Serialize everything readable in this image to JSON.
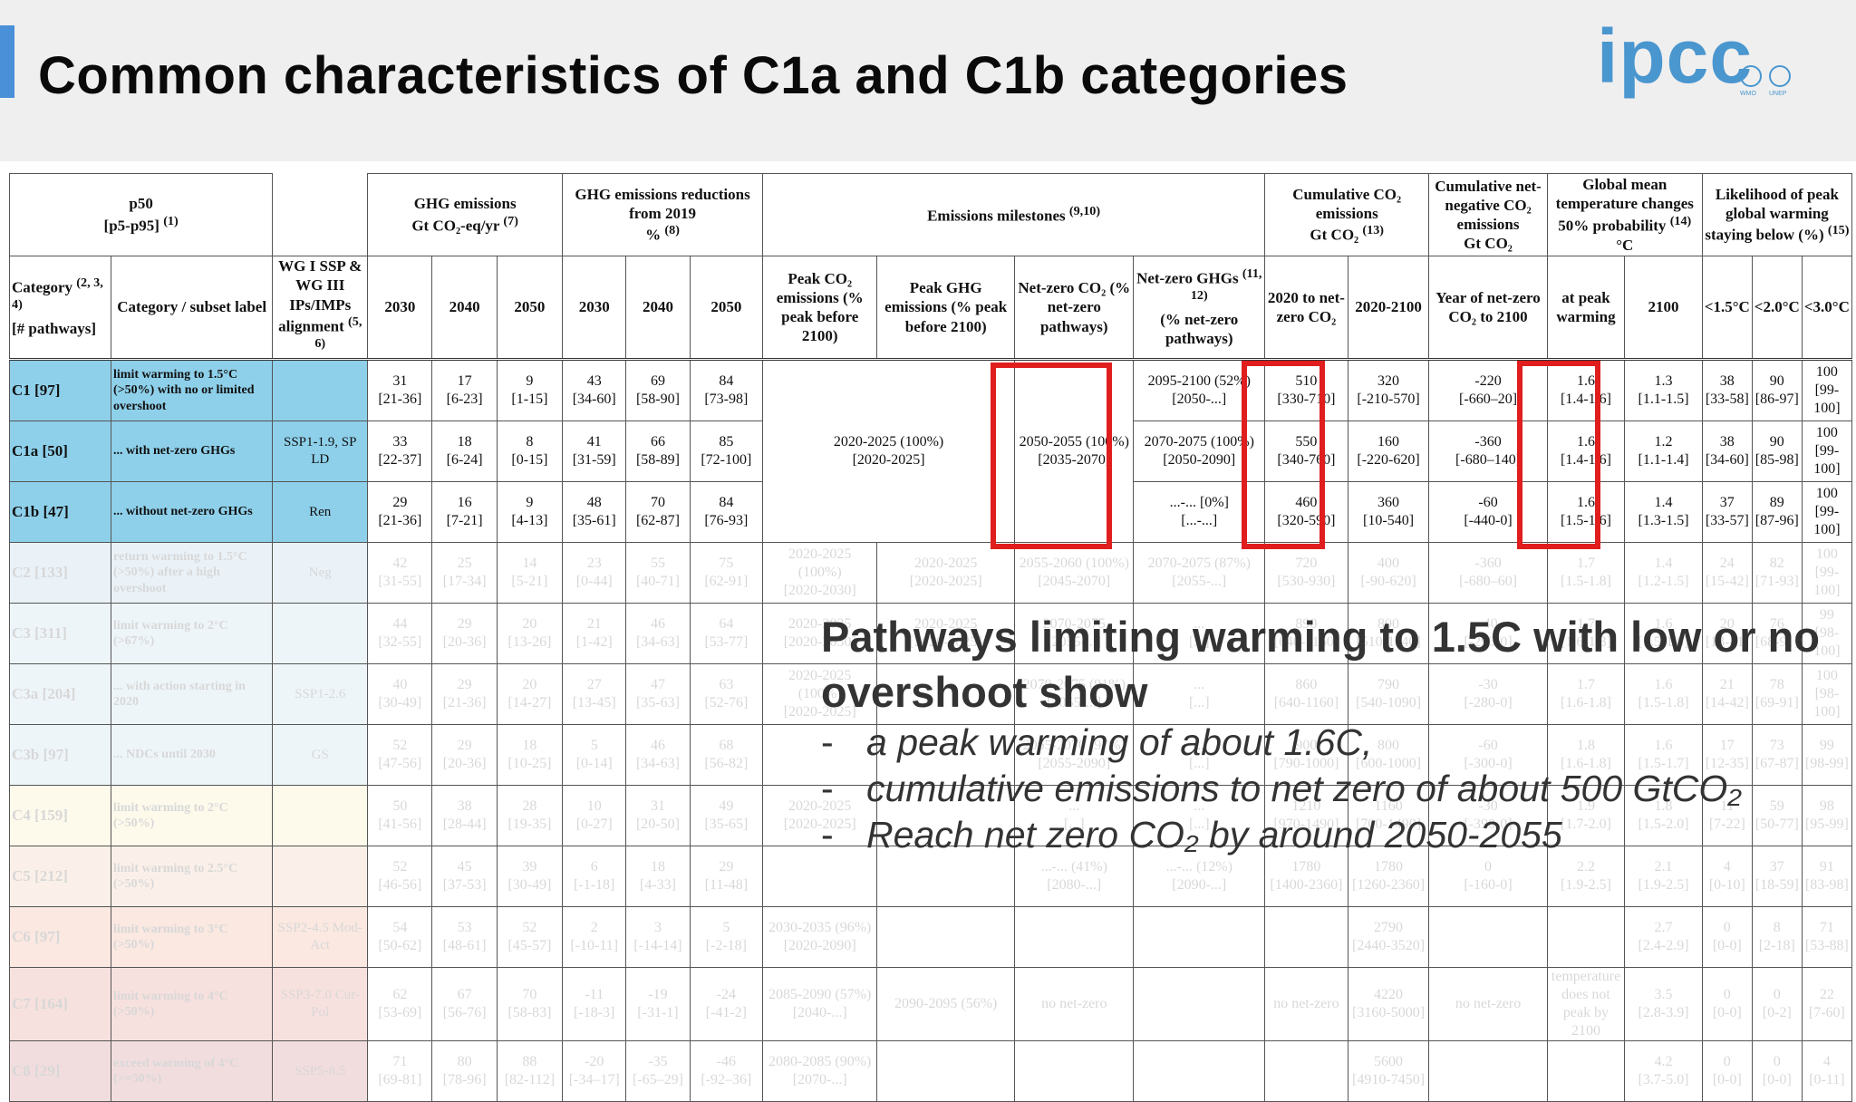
{
  "slide": {
    "title": "Common characteristics of C1a and C1b categories",
    "logo_text": "ipcc",
    "logo_sub": [
      "WMO",
      "UNEP"
    ],
    "accent_color": "#4a90d9",
    "highlight_color": "#e01e1e"
  },
  "headers": {
    "p50": "p50",
    "p5p95": "[p5-p95]",
    "p50_note": "(1)",
    "ghg_emissions": "GHG emissions",
    "ghg_emissions_unit": "Gt CO₂-eq/yr",
    "ghg_emissions_note": "(7)",
    "ghg_reductions": "GHG emissions reductions",
    "ghg_reductions_from": "from 2019",
    "ghg_reductions_unit": "%",
    "ghg_reductions_note": "(8)",
    "milestones": "Emissions milestones",
    "milestones_note": "(9,10)",
    "cum_co2": "Cumulative CO₂ emissions",
    "cum_co2_unit": "Gt CO₂",
    "cum_co2_note": "(13)",
    "cum_netneg": "Cumulative net-negative CO₂ emissions",
    "cum_netneg_unit": "Gt CO₂",
    "gmt": "Global mean temperature changes",
    "gmt_prob": "50% probability",
    "gmt_note": "(14)",
    "gmt_unit": "°C",
    "likelihood": "Likelihood of peak global warming staying below (%)",
    "likelihood_note": "(15)",
    "category": "Category",
    "category_note": "(2, 3, 4)",
    "n_pathways": "[# pathways]",
    "subset_label": "Category / subset label",
    "wg_alignment": "WG I SSP & WG III IPs/IMPs alignment",
    "wg_alignment_note": "(5, 6)",
    "y2030": "2030",
    "y2040": "2040",
    "y2050": "2050",
    "peak_co2": "Peak CO₂ emissions (% peak before 2100)",
    "peak_ghg": "Peak GHG emissions (% peak before 2100)",
    "netzero_co2": "Net-zero CO₂ (% net-zero pathways)",
    "netzero_ghg": "Net-zero GHGs",
    "netzero_ghg_note": "(11, 12)",
    "netzero_ghg_sub": "(% net-zero pathways)",
    "to_netzero": "2020 to net-zero CO₂",
    "range_2020_2100": "2020-2100",
    "year_netzero": "Year of net-zero CO₂ to 2100",
    "at_peak": "at peak warming",
    "y2100": "2100",
    "lt15": "<1.5°C",
    "lt20": "<2.0°C",
    "lt30": "<3.0°C"
  },
  "rows": [
    {
      "cat": "C1 [97]",
      "label": "limit warming to 1.5°C (>50%) with no or limited overshoot",
      "ssp": "",
      "g2030": "31",
      "g2030r": "[21-36]",
      "g2040": "17",
      "g2040r": "[6-23]",
      "g2050": "9",
      "g2050r": "[1-15]",
      "r2030": "43",
      "r2030r": "[34-60]",
      "r2040": "69",
      "r2040r": "[58-90]",
      "r2050": "84",
      "r2050r": "[73-98]",
      "nzghg": "2095-2100 (52%)",
      "nzghgr": "[2050-...]",
      "cum": "510",
      "cumr": "[330-710]",
      "c2100": "320",
      "c2100r": "[-210-570]",
      "neg": "-220",
      "negr": "[-660–20]",
      "peak": "1.6",
      "peakr": "[1.4-1.6]",
      "t2100": "1.3",
      "t2100r": "[1.1-1.5]",
      "l15": "38",
      "l15r": "[33-58]",
      "l20": "90",
      "l20r": "[86-97]",
      "l30": "100",
      "l30r": "[99-100]"
    },
    {
      "cat": "C1a [50]",
      "label": "... with net-zero GHGs",
      "ssp": "SSP1-1.9, SP LD",
      "g2030": "33",
      "g2030r": "[22-37]",
      "g2040": "18",
      "g2040r": "[6-24]",
      "g2050": "8",
      "g2050r": "[0-15]",
      "r2030": "41",
      "r2030r": "[31-59]",
      "r2040": "66",
      "r2040r": "[58-89]",
      "r2050": "85",
      "r2050r": "[72-100]",
      "peakco2": "2020-2025 (100%)",
      "peakco2r": "[2020-2025]",
      "nzco2": "2050-2055 (100%)",
      "nzco2r": "[2035-2070]",
      "nzghg": "2070-2075 (100%)",
      "nzghgr": "[2050-2090]",
      "cum": "550",
      "cumr": "[340-760]",
      "c2100": "160",
      "c2100r": "[-220-620]",
      "neg": "-360",
      "negr": "[-680–140]",
      "peak": "1.6",
      "peakr": "[1.4-1.6]",
      "t2100": "1.2",
      "t2100r": "[1.1-1.4]",
      "l15": "38",
      "l15r": "[34-60]",
      "l20": "90",
      "l20r": "[85-98]",
      "l30": "100",
      "l30r": "[99-100]"
    },
    {
      "cat": "C1b [47]",
      "label": "... without net-zero GHGs",
      "ssp": "Ren",
      "g2030": "29",
      "g2030r": "[21-36]",
      "g2040": "16",
      "g2040r": "[7-21]",
      "g2050": "9",
      "g2050r": "[4-13]",
      "r2030": "48",
      "r2030r": "[35-61]",
      "r2040": "70",
      "r2040r": "[62-87]",
      "r2050": "84",
      "r2050r": "[76-93]",
      "nzghg": "...-... [0%]",
      "nzghgr": "[...-...]",
      "cum": "460",
      "cumr": "[320-590]",
      "c2100": "360",
      "c2100r": "[10-540]",
      "neg": "-60",
      "negr": "[-440-0]",
      "peak": "1.6",
      "peakr": "[1.5-1.6]",
      "t2100": "1.4",
      "t2100r": "[1.3-1.5]",
      "l15": "37",
      "l15r": "[33-57]",
      "l20": "89",
      "l20r": "[87-96]",
      "l30": "100",
      "l30r": "[99-100]"
    }
  ],
  "faded_rows": [
    {
      "cat": "C2 [133]",
      "label": "return warming to 1.5°C (>50%) after a high overshoot",
      "ssp": "Neg",
      "g2030": "42",
      "g2030r": "[31-55]",
      "g2040": "25",
      "g2040r": "[17-34]",
      "g2050": "14",
      "g2050r": "[5-21]",
      "r2030": "23",
      "r2030r": "[0-44]",
      "r2040": "55",
      "r2040r": "[40-71]",
      "r2050": "75",
      "r2050r": "[62-91]",
      "pk1": "2020-2025 (100%)",
      "pk1r": "[2020-2030]",
      "pk2": "2020-2025",
      "pk2r": "[2020-2025]",
      "nz1": "2055-2060 (100%)",
      "nz1r": "[2045-2070]",
      "nz2": "2070-2075 (87%)",
      "nz2r": "[2055-...]",
      "cum": "720",
      "cumr": "[530-930]",
      "c2100": "400",
      "c2100r": "[-90-620]",
      "neg": "-360",
      "negr": "[-680–60]",
      "peak": "1.7",
      "peakr": "[1.5-1.8]",
      "t2100": "1.4",
      "t2100r": "[1.2-1.5]",
      "l15": "24",
      "l15r": "[15-42]",
      "l20": "82",
      "l20r": "[71-93]",
      "l30": "100",
      "l30r": "[99-100]",
      "cls": "bg-c2"
    },
    {
      "cat": "C3 [311]",
      "label": "limit warming to 2°C (>67%)",
      "ssp": "",
      "g2030": "44",
      "g2030r": "[32-55]",
      "g2040": "29",
      "g2040r": "[20-36]",
      "g2050": "20",
      "g2050r": "[13-26]",
      "r2030": "21",
      "r2030r": "[1-42]",
      "r2040": "46",
      "r2040r": "[34-63]",
      "r2050": "64",
      "r2050r": "[53-77]",
      "pk1": "2020-2025",
      "pk1r": "[2020-2030]",
      "pk2": "2020-2025",
      "pk2r": "[2020-2025]",
      "nz1": "2070-2075",
      "nz1r": "[2055-...]",
      "nz2": "...",
      "nz2r": "[...]",
      "cum": "890",
      "cumr": "[640-1160]",
      "c2100": "800",
      "c2100r": "[510-1140]",
      "neg": "-40",
      "negr": "[-290-0]",
      "peak": "1.7",
      "peakr": "[1.6-1.8]",
      "t2100": "1.6",
      "t2100r": "[1.5-1.8]",
      "l15": "20",
      "l15r": "[13-41]",
      "l20": "76",
      "l20r": "[68-91]",
      "l30": "99",
      "l30r": "[98-100]",
      "cls": "bg-c3"
    },
    {
      "cat": "C3a [204]",
      "label": "... with action starting in 2020",
      "ssp": "SSP1-2.6",
      "g2030": "40",
      "g2030r": "[30-49]",
      "g2040": "29",
      "g2040r": "[21-36]",
      "g2050": "20",
      "g2050r": "[14-27]",
      "r2030": "27",
      "r2030r": "[13-45]",
      "r2040": "47",
      "r2040r": "[35-63]",
      "r2050": "63",
      "r2050r": "[52-76]",
      "pk1": "2020-2025 (100%)",
      "pk1r": "[2020-2025]",
      "pk2": "",
      "pk2r": "",
      "nz1": "2070-2075 (91%)",
      "nz1r": "[2055-...]",
      "nz2": "...",
      "nz2r": "[...]",
      "cum": "860",
      "cumr": "[640-1160]",
      "c2100": "790",
      "c2100r": "[540-1090]",
      "neg": "-30",
      "negr": "[-280-0]",
      "peak": "1.7",
      "peakr": "[1.6-1.8]",
      "t2100": "1.6",
      "t2100r": "[1.5-1.8]",
      "l15": "21",
      "l15r": "[14-42]",
      "l20": "78",
      "l20r": "[69-91]",
      "l30": "100",
      "l30r": "[98-100]",
      "cls": "bg-c3"
    },
    {
      "cat": "C3b [97]",
      "label": "... NDCs until 2030",
      "ssp": "GS",
      "g2030": "52",
      "g2030r": "[47-56]",
      "g2040": "29",
      "g2040r": "[20-36]",
      "g2050": "18",
      "g2050r": "[10-25]",
      "r2030": "5",
      "r2030r": "[0-14]",
      "r2040": "46",
      "r2040r": "[34-63]",
      "r2050": "68",
      "r2050r": "[56-82]",
      "pk1": "",
      "pk1r": "",
      "pk2": "",
      "pk2r": "",
      "nz1": "2065-2070 (97%)",
      "nz1r": "[2055-2090]",
      "nz2": "...",
      "nz2r": "[...]",
      "cum": "900",
      "cumr": "[790-1000]",
      "c2100": "800",
      "c2100r": "[600-1000]",
      "neg": "-60",
      "negr": "[-300-0]",
      "peak": "1.8",
      "peakr": "[1.6-1.8]",
      "t2100": "1.6",
      "t2100r": "[1.5-1.7]",
      "l15": "17",
      "l15r": "[12-35]",
      "l20": "73",
      "l20r": "[67-87]",
      "l30": "99",
      "l30r": "[98-99]",
      "cls": "bg-c3"
    },
    {
      "cat": "C4 [159]",
      "label": "limit warming to 2°C (>50%)",
      "ssp": "",
      "g2030": "50",
      "g2030r": "[41-56]",
      "g2040": "38",
      "g2040r": "[28-44]",
      "g2050": "28",
      "g2050r": "[19-35]",
      "r2030": "10",
      "r2030r": "[0-27]",
      "r2040": "31",
      "r2040r": "[20-50]",
      "r2050": "49",
      "r2050r": "[35-65]",
      "pk1": "2020-2025",
      "pk1r": "[2020-2025]",
      "pk2": "",
      "pk2r": "",
      "nz1": "...",
      "nz1r": "[...]",
      "nz2": "...",
      "nz2r": "[...]",
      "cum": "1210",
      "cumr": "[970-1490]",
      "c2100": "1160",
      "c2100r": "[700-1490]",
      "neg": "-30",
      "negr": "[-390-0]",
      "peak": "1.9",
      "peakr": "[1.7-2.0]",
      "t2100": "1.8",
      "t2100r": "[1.5-2.0]",
      "l15": "11",
      "l15r": "[7-22]",
      "l20": "59",
      "l20r": "[50-77]",
      "l30": "98",
      "l30r": "[95-99]",
      "cls": "bg-c4"
    },
    {
      "cat": "C5 [212]",
      "label": "limit warming to 2.5°C (>50%)",
      "ssp": "",
      "g2030": "52",
      "g2030r": "[46-56]",
      "g2040": "45",
      "g2040r": "[37-53]",
      "g2050": "39",
      "g2050r": "[30-49]",
      "r2030": "6",
      "r2030r": "[-1-18]",
      "r2040": "18",
      "r2040r": "[4-33]",
      "r2050": "29",
      "r2050r": "[11-48]",
      "pk1": "",
      "pk1r": "",
      "pk2": "",
      "pk2r": "",
      "nz1": "...-... (41%)",
      "nz1r": "[2080-...]",
      "nz2": "...-... (12%)",
      "nz2r": "[2090-...]",
      "cum": "1780",
      "cumr": "[1400-2360]",
      "c2100": "1780",
      "c2100r": "[1260-2360]",
      "neg": "0",
      "negr": "[-160-0]",
      "peak": "2.2",
      "peakr": "[1.9-2.5]",
      "t2100": "2.1",
      "t2100r": "[1.9-2.5]",
      "l15": "4",
      "l15r": "[0-10]",
      "l20": "37",
      "l20r": "[18-59]",
      "l30": "91",
      "l30r": "[83-98]",
      "cls": "bg-c5"
    },
    {
      "cat": "C6 [97]",
      "label": "limit warming to 3°C (>50%)",
      "ssp": "SSP2-4.5 Mod-Act",
      "g2030": "54",
      "g2030r": "[50-62]",
      "g2040": "53",
      "g2040r": "[48-61]",
      "g2050": "52",
      "g2050r": "[45-57]",
      "r2030": "2",
      "r2030r": "[-10-11]",
      "r2040": "3",
      "r2040r": "[-14-14]",
      "r2050": "5",
      "r2050r": "[-2-18]",
      "pk1": "2030-2035 (96%)",
      "pk1r": "[2020-2090]",
      "pk2": "",
      "pk2r": "",
      "nz1": "",
      "nz1r": "",
      "nz2": "",
      "nz2r": "",
      "cum": "",
      "cumr": "",
      "c2100": "2790",
      "c2100r": "[2440-3520]",
      "neg": "",
      "negr": "",
      "peak": "",
      "peakr": "",
      "t2100": "2.7",
      "t2100r": "[2.4-2.9]",
      "l15": "0",
      "l15r": "[0-0]",
      "l20": "8",
      "l20r": "[2-18]",
      "l30": "71",
      "l30r": "[53-88]",
      "cls": "bg-c6"
    },
    {
      "cat": "C7 [164]",
      "label": "limit warming to 4°C (>50%)",
      "ssp": "SSP3-7.0 Cur-Pol",
      "g2030": "62",
      "g2030r": "[53-69]",
      "g2040": "67",
      "g2040r": "[56-76]",
      "g2050": "70",
      "g2050r": "[58-83]",
      "r2030": "-11",
      "r2030r": "[-18-3]",
      "r2040": "-19",
      "r2040r": "[-31-1]",
      "r2050": "-24",
      "r2050r": "[-41-2]",
      "pk1": "2085-2090 (57%)",
      "pk1r": "[2040-...]",
      "pk2": "2090-2095 (56%)",
      "pk2r": "",
      "nz1": "no net-zero",
      "nz1r": "",
      "nz2": "",
      "nz2r": "",
      "cum": "no net-zero",
      "cumr": "",
      "c2100": "4220",
      "c2100r": "[3160-5000]",
      "neg": "no net-zero",
      "negr": "",
      "peak": "temperature does not peak by 2100",
      "peakr": "",
      "t2100": "3.5",
      "t2100r": "[2.8-3.9]",
      "l15": "0",
      "l15r": "[0-0]",
      "l20": "0",
      "l20r": "[0-2]",
      "l30": "22",
      "l30r": "[7-60]",
      "cls": "bg-c7"
    },
    {
      "cat": "C8 [29]",
      "label": "exceed warming of 4°C (>=50%)",
      "ssp": "SSP5-8.5",
      "g2030": "71",
      "g2030r": "[69-81]",
      "g2040": "80",
      "g2040r": "[78-96]",
      "g2050": "88",
      "g2050r": "[82-112]",
      "r2030": "-20",
      "r2030r": "[-34–17]",
      "r2040": "-35",
      "r2040r": "[-65–29]",
      "r2050": "-46",
      "r2050r": "[-92–36]",
      "pk1": "2080-2085 (90%)",
      "pk1r": "[2070-...]",
      "pk2": "",
      "pk2r": "",
      "nz1": "",
      "nz1r": "",
      "nz2": "",
      "nz2r": "",
      "cum": "",
      "cumr": "",
      "c2100": "5600",
      "c2100r": "[4910-7450]",
      "neg": "",
      "negr": "",
      "peak": "",
      "peakr": "",
      "t2100": "4.2",
      "t2100r": "[3.7-5.0]",
      "l15": "0",
      "l15r": "[0-0]",
      "l20": "0",
      "l20r": "[0-0]",
      "l30": "4",
      "l30r": "[0-11]",
      "cls": "bg-c8"
    }
  ],
  "callout": {
    "heading": "Pathways limiting warming to 1.5C with low or no overshoot show",
    "bullets": [
      "a peak warming of about 1.6C,",
      "cumulative emissions to net zero of about 500 GtCO₂",
      "Reach net zero CO₂ by around 2050-2055"
    ]
  }
}
